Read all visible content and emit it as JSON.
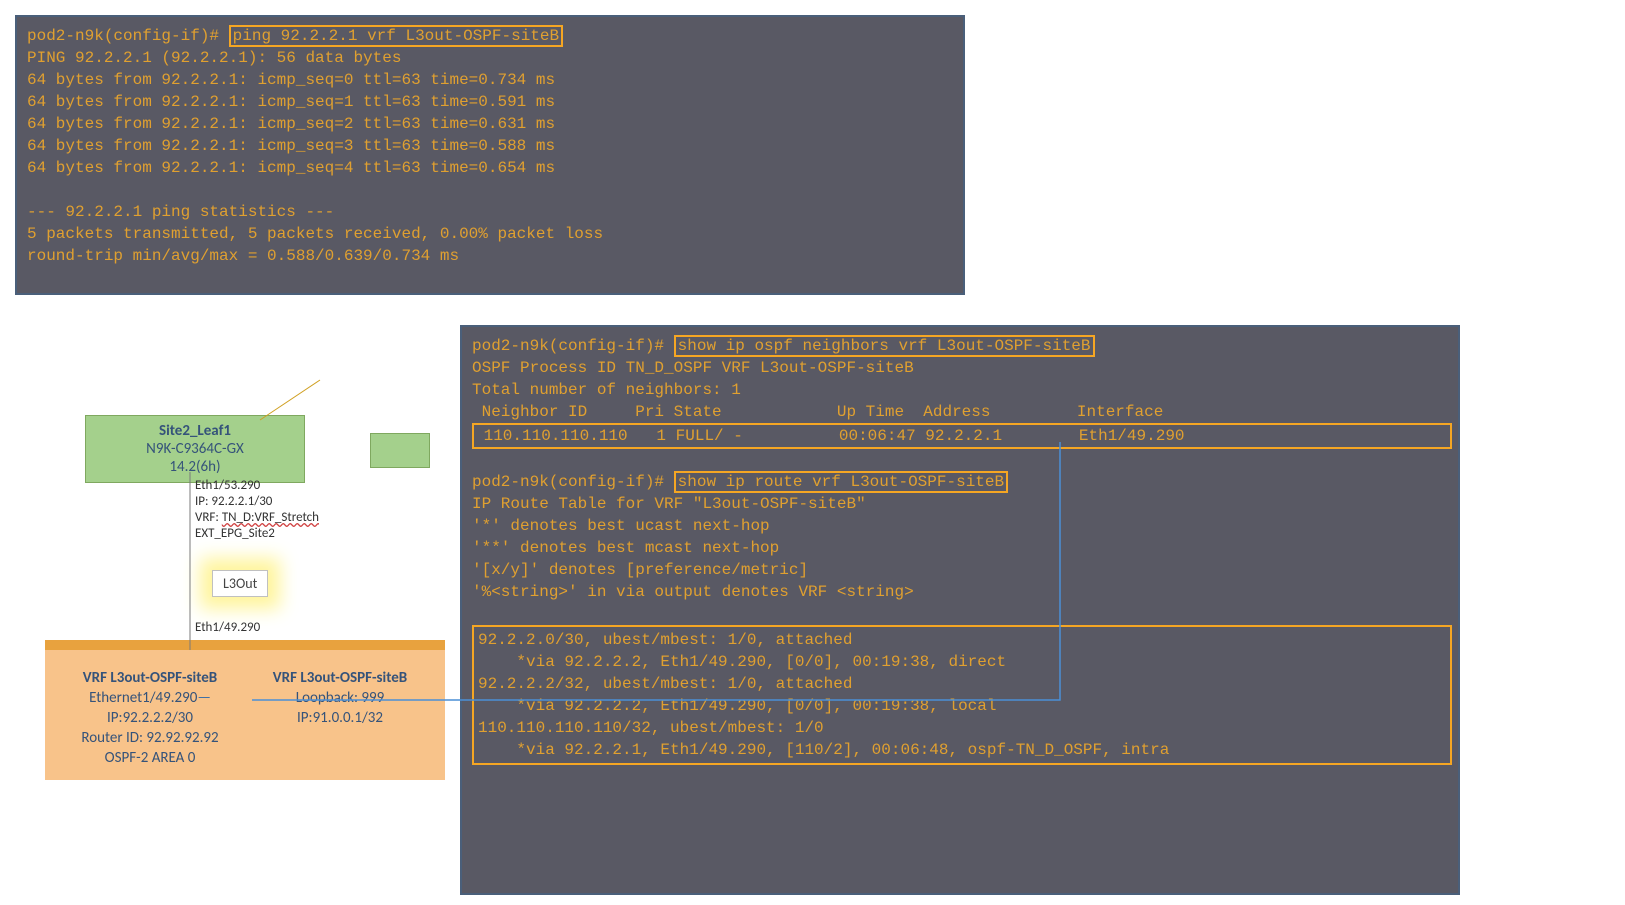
{
  "colors": {
    "termBg": "#595964",
    "termText": "#e0a030",
    "highlight": "#f5a623",
    "leafBg": "#a4d08c",
    "leafText": "#35537a",
    "routerBg": "#f8c38a",
    "routerBorder": "#e8a23e"
  },
  "terminal1": {
    "prompt": "pod2-n9k(config-if)# ",
    "cmd": "ping 92.2.2.1 vrf L3out-OSPF-siteB",
    "lines": [
      "PING 92.2.2.1 (92.2.2.1): 56 data bytes",
      "64 bytes from 92.2.2.1: icmp_seq=0 ttl=63 time=0.734 ms",
      "64 bytes from 92.2.2.1: icmp_seq=1 ttl=63 time=0.591 ms",
      "64 bytes from 92.2.2.1: icmp_seq=2 ttl=63 time=0.631 ms",
      "64 bytes from 92.2.2.1: icmp_seq=3 ttl=63 time=0.588 ms",
      "64 bytes from 92.2.2.1: icmp_seq=4 ttl=63 time=0.654 ms",
      "",
      "--- 92.2.2.1 ping statistics ---",
      "5 packets transmitted, 5 packets received, 0.00% packet loss",
      "round-trip min/avg/max = 0.588/0.639/0.734 ms"
    ]
  },
  "terminal2": {
    "prompt": "pod2-n9k(config-if)# ",
    "cmd1": "show ip ospf neighbors vrf L3out-OSPF-siteB",
    "ospf_header": " OSPF Process ID TN_D_OSPF VRF L3out-OSPF-siteB",
    "ospf_total": " Total number of neighbors: 1",
    "ospf_cols": " Neighbor ID     Pri State            Up Time  Address         Interface",
    "ospf_row": " 110.110.110.110   1 FULL/ -          00:06:47 92.2.2.1        Eth1/49.290 ",
    "cmd2": "show ip route vrf L3out-OSPF-siteB",
    "route_lines": [
      "IP Route Table for VRF \"L3out-OSPF-siteB\"",
      "'*' denotes best ucast next-hop",
      "'**' denotes best mcast next-hop",
      "'[x/y]' denotes [preference/metric]",
      "'%<string>' in via output denotes VRF <string>"
    ],
    "route_block": [
      "92.2.2.0/30, ubest/mbest: 1/0, attached",
      "    *via 92.2.2.2, Eth1/49.290, [0/0], 00:19:38, direct",
      "92.2.2.2/32, ubest/mbest: 1/0, attached",
      "    *via 92.2.2.2, Eth1/49.290, [0/0], 00:19:38, local",
      "110.110.110.110/32, ubest/mbest: 1/0",
      "    *via 92.2.2.1, Eth1/49.290, [110/2], 00:06:48, ospf-TN_D_OSPF, intra"
    ]
  },
  "diagram": {
    "leaf": {
      "name": "Site2_Leaf1",
      "model": "N9K-C9364C-GX",
      "version": "14.2(6h)"
    },
    "upperIntf": {
      "port": "Eth1/53.290",
      "ip": "IP: 92.2.2.1/30",
      "vrf": "VRF: TN_D:VRF_Stretch",
      "epg": "EXT_EPG_Site2"
    },
    "l3out": "L3Out",
    "lowerPort": "Eth1/49.290",
    "routerLeft": {
      "vrf": "VRF L3out-OSPF-siteB",
      "intf": "Ethernet1/49.290",
      "ip": "IP:92.2.2.2/30",
      "rid": "Router ID: 92.92.92.92",
      "area": "OSPF-2 AREA 0"
    },
    "routerRight": {
      "vrf": "VRF L3out-OSPF-siteB",
      "lo": "Loopback: 999",
      "ip": "IP:91.0.0.1/32"
    }
  }
}
